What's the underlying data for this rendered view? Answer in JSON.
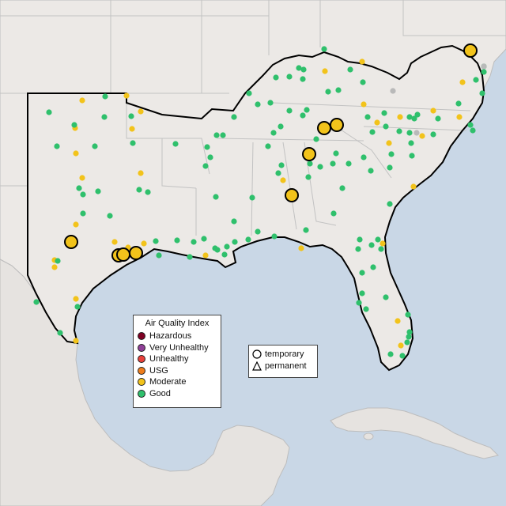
{
  "map": {
    "colors": {
      "ocean": "#c9d7e6",
      "land": "#ece9e6",
      "land_border": "#b8b8b8",
      "region_outline": "#000000",
      "hazardous": "#7e0023",
      "very_unhealthy": "#8f3f97",
      "unhealthy": "#e8403a",
      "usg": "#ee7d1c",
      "moderate": "#f2c31b",
      "good": "#2fc06c",
      "no_data": "#b9b9b9"
    }
  },
  "legend": {
    "title": "Air Quality Index",
    "items": [
      {
        "label": "Hazardous",
        "color": "#7e0023"
      },
      {
        "label": "Very Unhealthy",
        "color": "#8f3f97"
      },
      {
        "label": "Unhealthy",
        "color": "#e8403a"
      },
      {
        "label": "USG",
        "color": "#ee7d1c"
      },
      {
        "label": "Moderate",
        "color": "#f2c31b"
      },
      {
        "label": "Good",
        "color": "#2fc06c"
      }
    ]
  },
  "shape_legend": {
    "temporary": "temporary",
    "permanent": "permanent"
  }
}
